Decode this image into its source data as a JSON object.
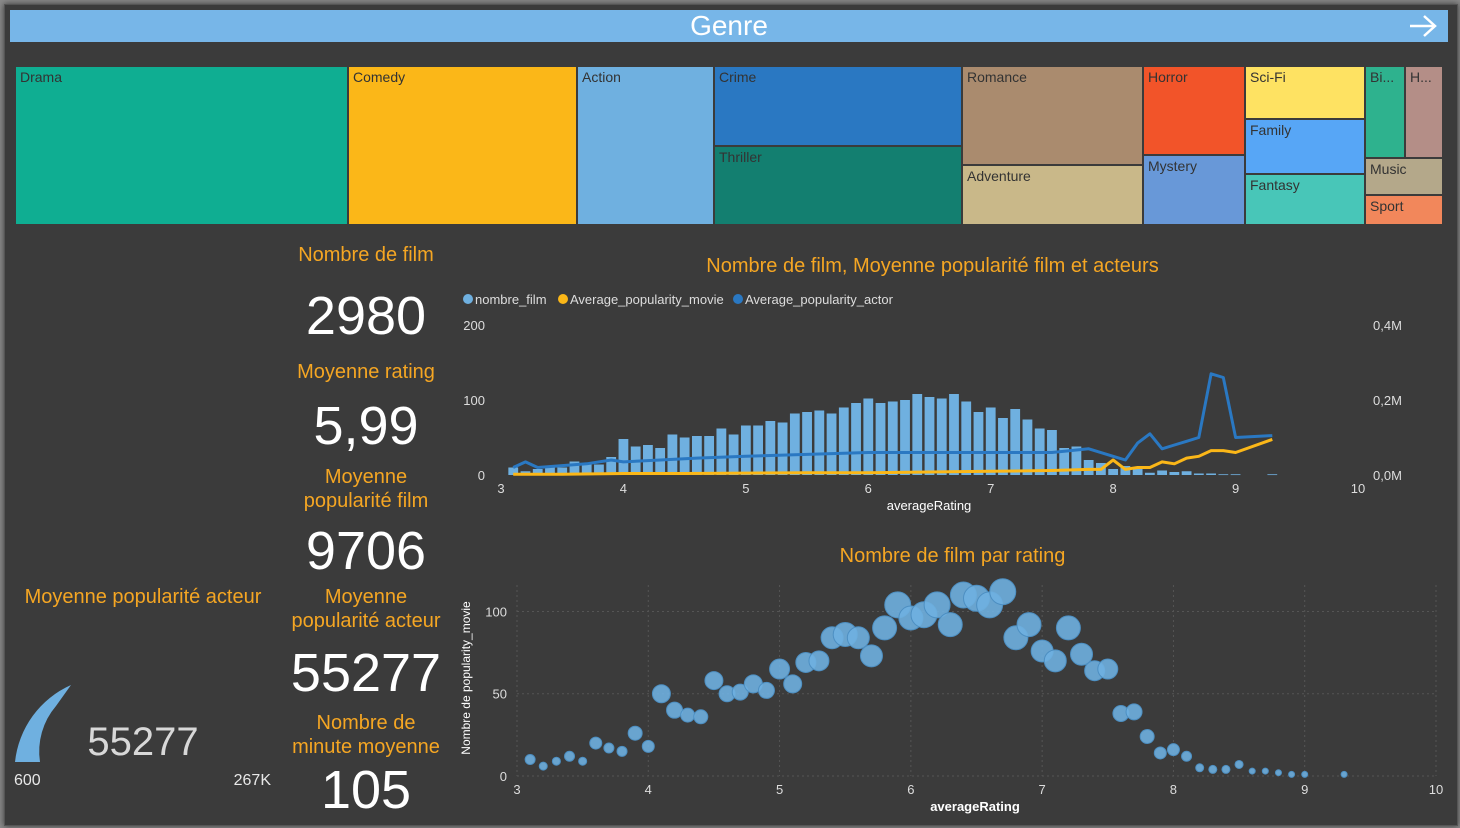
{
  "header": {
    "title": "Genre",
    "next_icon": "arrow-right-icon"
  },
  "treemap": {
    "tiles": [
      {
        "label": "Drama",
        "color": "#0fae92"
      },
      {
        "label": "Comedy",
        "color": "#fbb718"
      },
      {
        "label": "Action",
        "color": "#6fb0e0"
      },
      {
        "label": "Crime",
        "color": "#2a78c2"
      },
      {
        "label": "Thriller",
        "color": "#137f70"
      },
      {
        "label": "Romance",
        "color": "#aa8b6e"
      },
      {
        "label": "Adventure",
        "color": "#c9b889"
      },
      {
        "label": "Horror",
        "color": "#f25429"
      },
      {
        "label": "Mystery",
        "color": "#6898d8"
      },
      {
        "label": "Sci-Fi",
        "color": "#fee262"
      },
      {
        "label": "Family",
        "color": "#57a6f6"
      },
      {
        "label": "Fantasy",
        "color": "#48c6b8"
      },
      {
        "label": "Bi...",
        "color": "#2eb28e"
      },
      {
        "label": "H...",
        "color": "#b48e87"
      },
      {
        "label": "Music",
        "color": "#b4a88a"
      },
      {
        "label": "Sport",
        "color": "#f2875b"
      }
    ]
  },
  "kpis": {
    "nombre_film_label": "Nombre de film",
    "nombre_film_value": "2980",
    "moyenne_rating_label": "Moyenne rating",
    "moyenne_rating_value": "5,99",
    "pop_film_label_1": "Moyenne",
    "pop_film_label_2": "popularité film",
    "pop_film_value": "9706",
    "pop_acteur_label_1": "Moyenne",
    "pop_acteur_label_2": "popularité acteur",
    "pop_acteur_value": "55277",
    "minute_label_1": "Nombre de",
    "minute_label_2": "minute moyenne",
    "minute_value": "105"
  },
  "gauge": {
    "title": "Moyenne popularité acteur",
    "value": "55277",
    "min": "600",
    "max": "267K",
    "fill_color": "#6fb0e0"
  },
  "combo_chart": {
    "title": "Nombre de film, Moyenne popularité film et acteurs",
    "legend": [
      {
        "name": "nombre_film",
        "color": "#6fb0e0"
      },
      {
        "name": "Average_popularity_movie",
        "color": "#fbb718"
      },
      {
        "name": "Average_popularity_actor",
        "color": "#2a78c2"
      }
    ],
    "xlabel": "averageRating",
    "x_ticks": [
      "3",
      "4",
      "5",
      "6",
      "7",
      "8",
      "9",
      "10"
    ],
    "y_left_ticks": [
      "0",
      "100",
      "200"
    ],
    "y_right_ticks": [
      "0,0M",
      "0,2M",
      "0,4M"
    ]
  },
  "scatter_chart": {
    "title": "Nombre de film par rating",
    "xlabel": "averageRating",
    "ylabel": "Nombre de popularity_movie",
    "x_ticks": [
      "3",
      "4",
      "5",
      "6",
      "7",
      "8",
      "9",
      "10"
    ],
    "y_ticks": [
      "0",
      "50",
      "100"
    ]
  },
  "chart_data": [
    {
      "type": "bar",
      "title": "Nombre de film, Moyenne popularité film et acteurs",
      "xlabel": "averageRating",
      "xlim": [
        3,
        10
      ],
      "ylim_left": [
        0,
        200
      ],
      "ylim_right": [
        0,
        0.4
      ],
      "series": [
        {
          "name": "nombre_film",
          "axis": "left",
          "x": [
            3.1,
            3.2,
            3.3,
            3.4,
            3.5,
            3.6,
            3.7,
            3.8,
            3.9,
            4.0,
            4.1,
            4.2,
            4.3,
            4.4,
            4.5,
            4.6,
            4.7,
            4.8,
            4.9,
            5.0,
            5.1,
            5.2,
            5.3,
            5.4,
            5.5,
            5.6,
            5.7,
            5.8,
            5.9,
            6.0,
            6.1,
            6.2,
            6.3,
            6.4,
            6.5,
            6.6,
            6.7,
            6.8,
            6.9,
            7.0,
            7.1,
            7.2,
            7.3,
            7.4,
            7.5,
            7.6,
            7.7,
            7.8,
            7.9,
            8.0,
            8.1,
            8.2,
            8.3,
            8.4,
            8.5,
            8.6,
            8.7,
            8.8,
            8.9,
            9.0,
            9.3
          ],
          "values": [
            10,
            5,
            8,
            12,
            10,
            18,
            15,
            14,
            24,
            48,
            38,
            40,
            36,
            54,
            50,
            52,
            52,
            62,
            54,
            66,
            66,
            72,
            70,
            82,
            84,
            86,
            82,
            90,
            96,
            102,
            96,
            98,
            100,
            108,
            104,
            102,
            108,
            98,
            84,
            90,
            76,
            88,
            74,
            62,
            60,
            36,
            38,
            20,
            16,
            8,
            12,
            9,
            3,
            6,
            4,
            5,
            2,
            2,
            1,
            1,
            1
          ]
        },
        {
          "name": "Average_popularity_movie",
          "axis": "right",
          "x": [
            3.1,
            3.5,
            4,
            4.5,
            5,
            5.5,
            6,
            6.5,
            7,
            7.5,
            7.8,
            7.9,
            8.0,
            8.1,
            8.2,
            8.3,
            8.4,
            8.5,
            8.6,
            8.7,
            8.8,
            8.9,
            9.0,
            9.3
          ],
          "values": [
            0.002,
            0.002,
            0.004,
            0.004,
            0.005,
            0.006,
            0.006,
            0.008,
            0.01,
            0.012,
            0.015,
            0.015,
            0.04,
            0.015,
            0.02,
            0.02,
            0.035,
            0.03,
            0.045,
            0.05,
            0.065,
            0.065,
            0.06,
            0.095
          ]
        },
        {
          "name": "Average_popularity_actor",
          "axis": "right",
          "x": [
            3.1,
            3.2,
            3.3,
            3.5,
            3.7,
            3.9,
            4.0,
            4.3,
            4.6,
            5.0,
            5.5,
            6.0,
            6.5,
            7.0,
            7.5,
            7.8,
            8.0,
            8.1,
            8.2,
            8.3,
            8.4,
            8.5,
            8.6,
            8.7,
            8.8,
            8.9,
            9.0,
            9.3
          ],
          "values": [
            0.02,
            0.035,
            0.02,
            0.025,
            0.03,
            0.04,
            0.035,
            0.04,
            0.045,
            0.05,
            0.055,
            0.06,
            0.06,
            0.06,
            0.06,
            0.07,
            0.05,
            0.04,
            0.085,
            0.11,
            0.07,
            0.08,
            0.09,
            0.1,
            0.27,
            0.26,
            0.1,
            0.105
          ]
        }
      ]
    },
    {
      "type": "scatter",
      "title": "Nombre de film par rating",
      "xlabel": "averageRating",
      "ylabel": "Nombre de popularity_movie",
      "xlim": [
        3,
        10
      ],
      "ylim": [
        0,
        110
      ],
      "series": [
        {
          "x": [
            3.1,
            3.2,
            3.3,
            3.4,
            3.5,
            3.6,
            3.7,
            3.8,
            3.9,
            4.0,
            4.1,
            4.2,
            4.3,
            4.4,
            4.5,
            4.6,
            4.7,
            4.8,
            4.9,
            5.0,
            5.1,
            5.2,
            5.3,
            5.4,
            5.5,
            5.6,
            5.7,
            5.8,
            5.9,
            6.0,
            6.1,
            6.2,
            6.3,
            6.4,
            6.5,
            6.6,
            6.7,
            6.8,
            6.9,
            7.0,
            7.1,
            7.2,
            7.3,
            7.4,
            7.5,
            7.6,
            7.7,
            7.8,
            7.9,
            8.0,
            8.1,
            8.2,
            8.3,
            8.4,
            8.5,
            8.6,
            8.7,
            8.8,
            8.9,
            9.0,
            9.3
          ],
          "y": [
            10,
            6,
            9,
            12,
            9,
            20,
            17,
            15,
            26,
            18,
            50,
            40,
            37,
            36,
            58,
            50,
            51,
            56,
            52,
            65,
            56,
            69,
            70,
            84,
            86,
            84,
            73,
            90,
            104,
            96,
            98,
            104,
            92,
            110,
            108,
            104,
            112,
            84,
            92,
            76,
            70,
            90,
            74,
            64,
            65,
            38,
            39,
            24,
            14,
            16,
            12,
            5,
            4,
            4,
            7,
            3,
            3,
            2,
            1,
            1,
            1
          ],
          "sizes": [
            5,
            4,
            4,
            5,
            4,
            6,
            5,
            5,
            7,
            6,
            9,
            8,
            7,
            7,
            9,
            8,
            8,
            9,
            8,
            10,
            9,
            10,
            10,
            11,
            12,
            11,
            11,
            12,
            13,
            12,
            13,
            13,
            12,
            13,
            13,
            13,
            13,
            12,
            12,
            11,
            11,
            12,
            11,
            10,
            10,
            8,
            8,
            7,
            6,
            6,
            5,
            4,
            4,
            4,
            4,
            3,
            3,
            3,
            3,
            3,
            3
          ]
        }
      ]
    }
  ]
}
